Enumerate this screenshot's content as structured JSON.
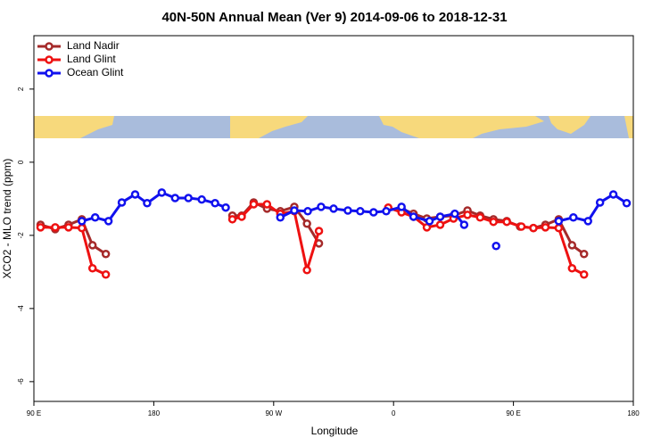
{
  "chart_data": {
    "type": "line",
    "title": "40N-50N Annual Mean (Ver 9)   2014-09-06 to 2018-12-31",
    "x_label": "Longitude",
    "y_label": "XCO2 - MLO trend (ppm)",
    "xlim": [
      90,
      540
    ],
    "ylim": [
      -6.54,
      3.46
    ],
    "xticks": [
      {
        "value": 90,
        "label": "90 E"
      },
      180,
      {
        "value": 270,
        "label": "90 W"
      },
      {
        "value": 360,
        "label": "0"
      },
      {
        "value": 450,
        "label": "90 E"
      },
      {
        "value": 540,
        "label": "180"
      }
    ],
    "yticks": [
      -6,
      -4,
      -2,
      0,
      2
    ],
    "legend": "top-left",
    "series": [
      {
        "name": "Land Nadir",
        "color": "#a52a2a",
        "x": [
          95,
          106,
          116,
          126,
          134,
          144,
          null,
          239,
          246,
          255,
          265,
          275,
          285.5,
          295,
          304,
          null,
          366,
          375,
          385,
          395,
          405,
          415.5,
          425,
          435,
          445,
          455,
          465,
          474,
          484,
          494,
          503
        ],
        "values": [
          -1.71,
          -1.83,
          -1.71,
          -1.56,
          -2.27,
          -2.51,
          null,
          -1.46,
          -1.46,
          -1.1,
          -1.27,
          -1.34,
          -1.22,
          -1.68,
          -2.22,
          null,
          -1.27,
          -1.41,
          -1.54,
          -1.49,
          -1.46,
          -1.32,
          -1.46,
          -1.56,
          -1.61,
          -1.76,
          -1.8,
          -1.71,
          -1.56,
          -2.27,
          -2.51
        ]
      },
      {
        "name": "Land Glint",
        "color": "#ee1111",
        "x": [
          95,
          106,
          116,
          126,
          134,
          144,
          null,
          239,
          246,
          255,
          265,
          275,
          285.5,
          295,
          304,
          null,
          356,
          366,
          375,
          385,
          395,
          405,
          415.5,
          425,
          435,
          445,
          456,
          465,
          474,
          484,
          494,
          503
        ],
        "values": [
          -1.78,
          -1.78,
          -1.78,
          -1.8,
          -2.9,
          -3.07,
          null,
          -1.56,
          -1.49,
          -1.15,
          -1.15,
          -1.41,
          -1.34,
          -2.95,
          -1.88,
          null,
          -1.24,
          -1.37,
          -1.49,
          -1.78,
          -1.71,
          -1.54,
          -1.44,
          -1.51,
          -1.63,
          -1.63,
          -1.76,
          -1.8,
          -1.78,
          -1.8,
          -2.9,
          -3.07
        ]
      },
      {
        "name": "Ocean Glint",
        "color": "#1111ee",
        "x": [
          126,
          136,
          146,
          156,
          166,
          175,
          186,
          196,
          206,
          216,
          226,
          234,
          null,
          275,
          285.5,
          295.6,
          305.6,
          315,
          325.7,
          335,
          345,
          354.5,
          366,
          375,
          387,
          395,
          406,
          413,
          null,
          437,
          null,
          484,
          495,
          506,
          515,
          525,
          535
        ],
        "values": [
          -1.61,
          -1.51,
          -1.61,
          -1.1,
          -0.88,
          -1.12,
          -0.83,
          -0.98,
          -0.98,
          -1.02,
          -1.12,
          -1.24,
          null,
          -1.51,
          -1.32,
          -1.34,
          -1.22,
          -1.27,
          -1.32,
          -1.34,
          -1.37,
          -1.34,
          -1.22,
          -1.49,
          -1.61,
          -1.49,
          -1.41,
          -1.71,
          null,
          -2.29,
          null,
          -1.61,
          -1.51,
          -1.61,
          -1.1,
          -0.88,
          -1.12
        ]
      }
    ]
  }
}
